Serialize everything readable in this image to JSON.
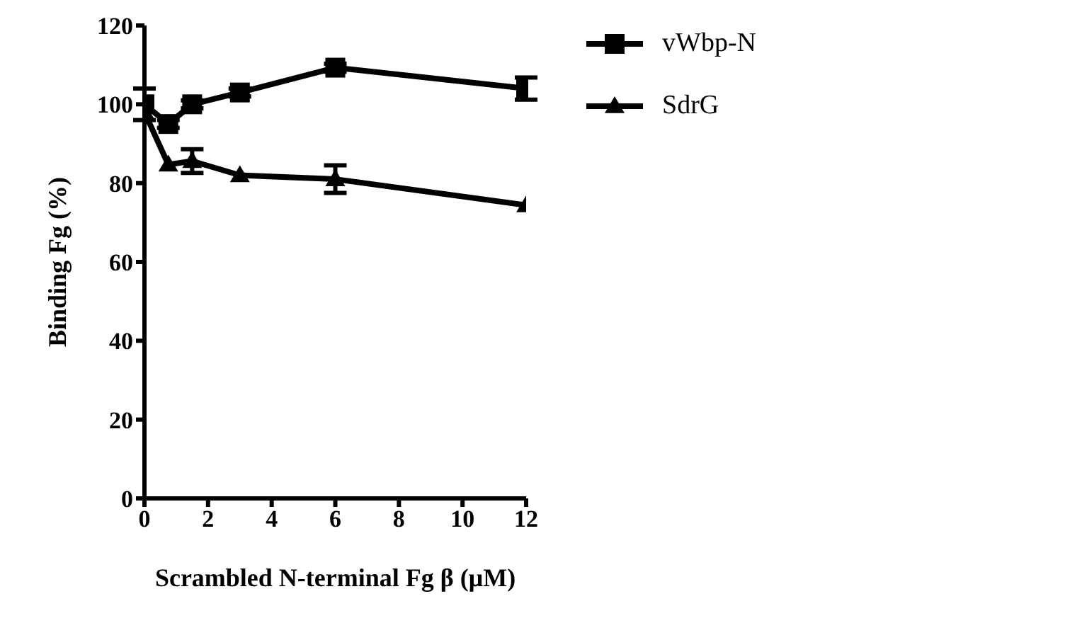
{
  "chart_data": {
    "type": "line",
    "xlabel": "Scrambled N-terminal Fg β (μM)",
    "ylabel": "Binding Fg (%)",
    "x": [
      0,
      0.75,
      1.5,
      3,
      6,
      12
    ],
    "xlim": [
      0,
      12
    ],
    "xticks": [
      0,
      2,
      4,
      6,
      8,
      10,
      12
    ],
    "ylim": [
      0,
      120
    ],
    "yticks": [
      0,
      20,
      40,
      60,
      80,
      100,
      120
    ],
    "grid": false,
    "legend": "top right",
    "series": [
      {
        "name": "vWbp-N",
        "color": "#000000",
        "marker": "square",
        "values": [
          100,
          95,
          100,
          103,
          109.3,
          104
        ],
        "errors": [
          4,
          1,
          1,
          1,
          1,
          2.8
        ]
      },
      {
        "name": "SdrG",
        "color": "#000000",
        "marker": "triangle",
        "values": [
          98,
          84.7,
          85.6,
          82,
          81,
          74.4
        ],
        "errors": [
          null,
          null,
          3,
          null,
          3.5,
          null
        ]
      }
    ]
  }
}
